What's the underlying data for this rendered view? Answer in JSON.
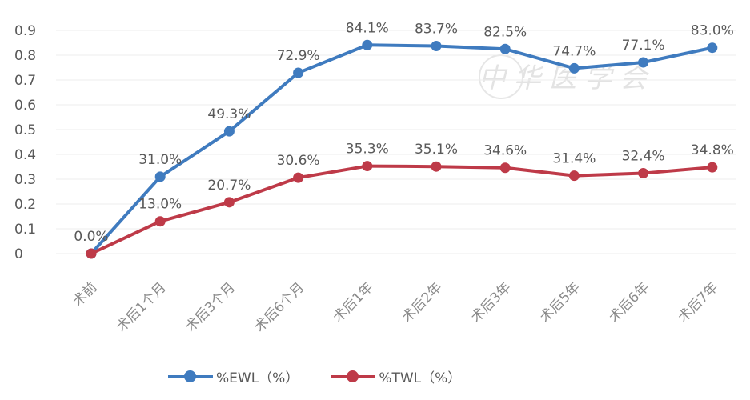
{
  "chart_data": {
    "type": "line",
    "categories": [
      "术前",
      "术后1个月",
      "术后3个月",
      "术后6个月",
      "术后1年",
      "术后2年",
      "术后3年",
      "术后5年",
      "术后6年",
      "术后7年"
    ],
    "series": [
      {
        "name": "%EWL（%）",
        "color": "#3f7bbf",
        "values": [
          0,
          0.31,
          0.493,
          0.729,
          0.841,
          0.837,
          0.825,
          0.747,
          0.771,
          0.83
        ],
        "labels": [
          "0.0%",
          "31.0%",
          "49.3%",
          "72.9%",
          "84.1%",
          "83.7%",
          "82.5%",
          "74.7%",
          "77.1%",
          "83.0%"
        ]
      },
      {
        "name": "%TWL（%）",
        "color": "#be3a48",
        "values": [
          0,
          0.13,
          0.207,
          0.306,
          0.353,
          0.351,
          0.346,
          0.314,
          0.324,
          0.348
        ],
        "labels": [
          "",
          "13.0%",
          "20.7%",
          "30.6%",
          "35.3%",
          "35.1%",
          "34.6%",
          "31.4%",
          "32.4%",
          "34.8%"
        ]
      }
    ],
    "yticks": [
      "0",
      "0.1",
      "0.2",
      "0.3",
      "0.4",
      "0.5",
      "0.6",
      "0.7",
      "0.8",
      "0.9"
    ],
    "ylim": [
      0,
      0.9
    ],
    "grid": true,
    "legend": "bottom",
    "title": "",
    "xlabel": "",
    "ylabel": ""
  },
  "watermark": "中华医学会"
}
